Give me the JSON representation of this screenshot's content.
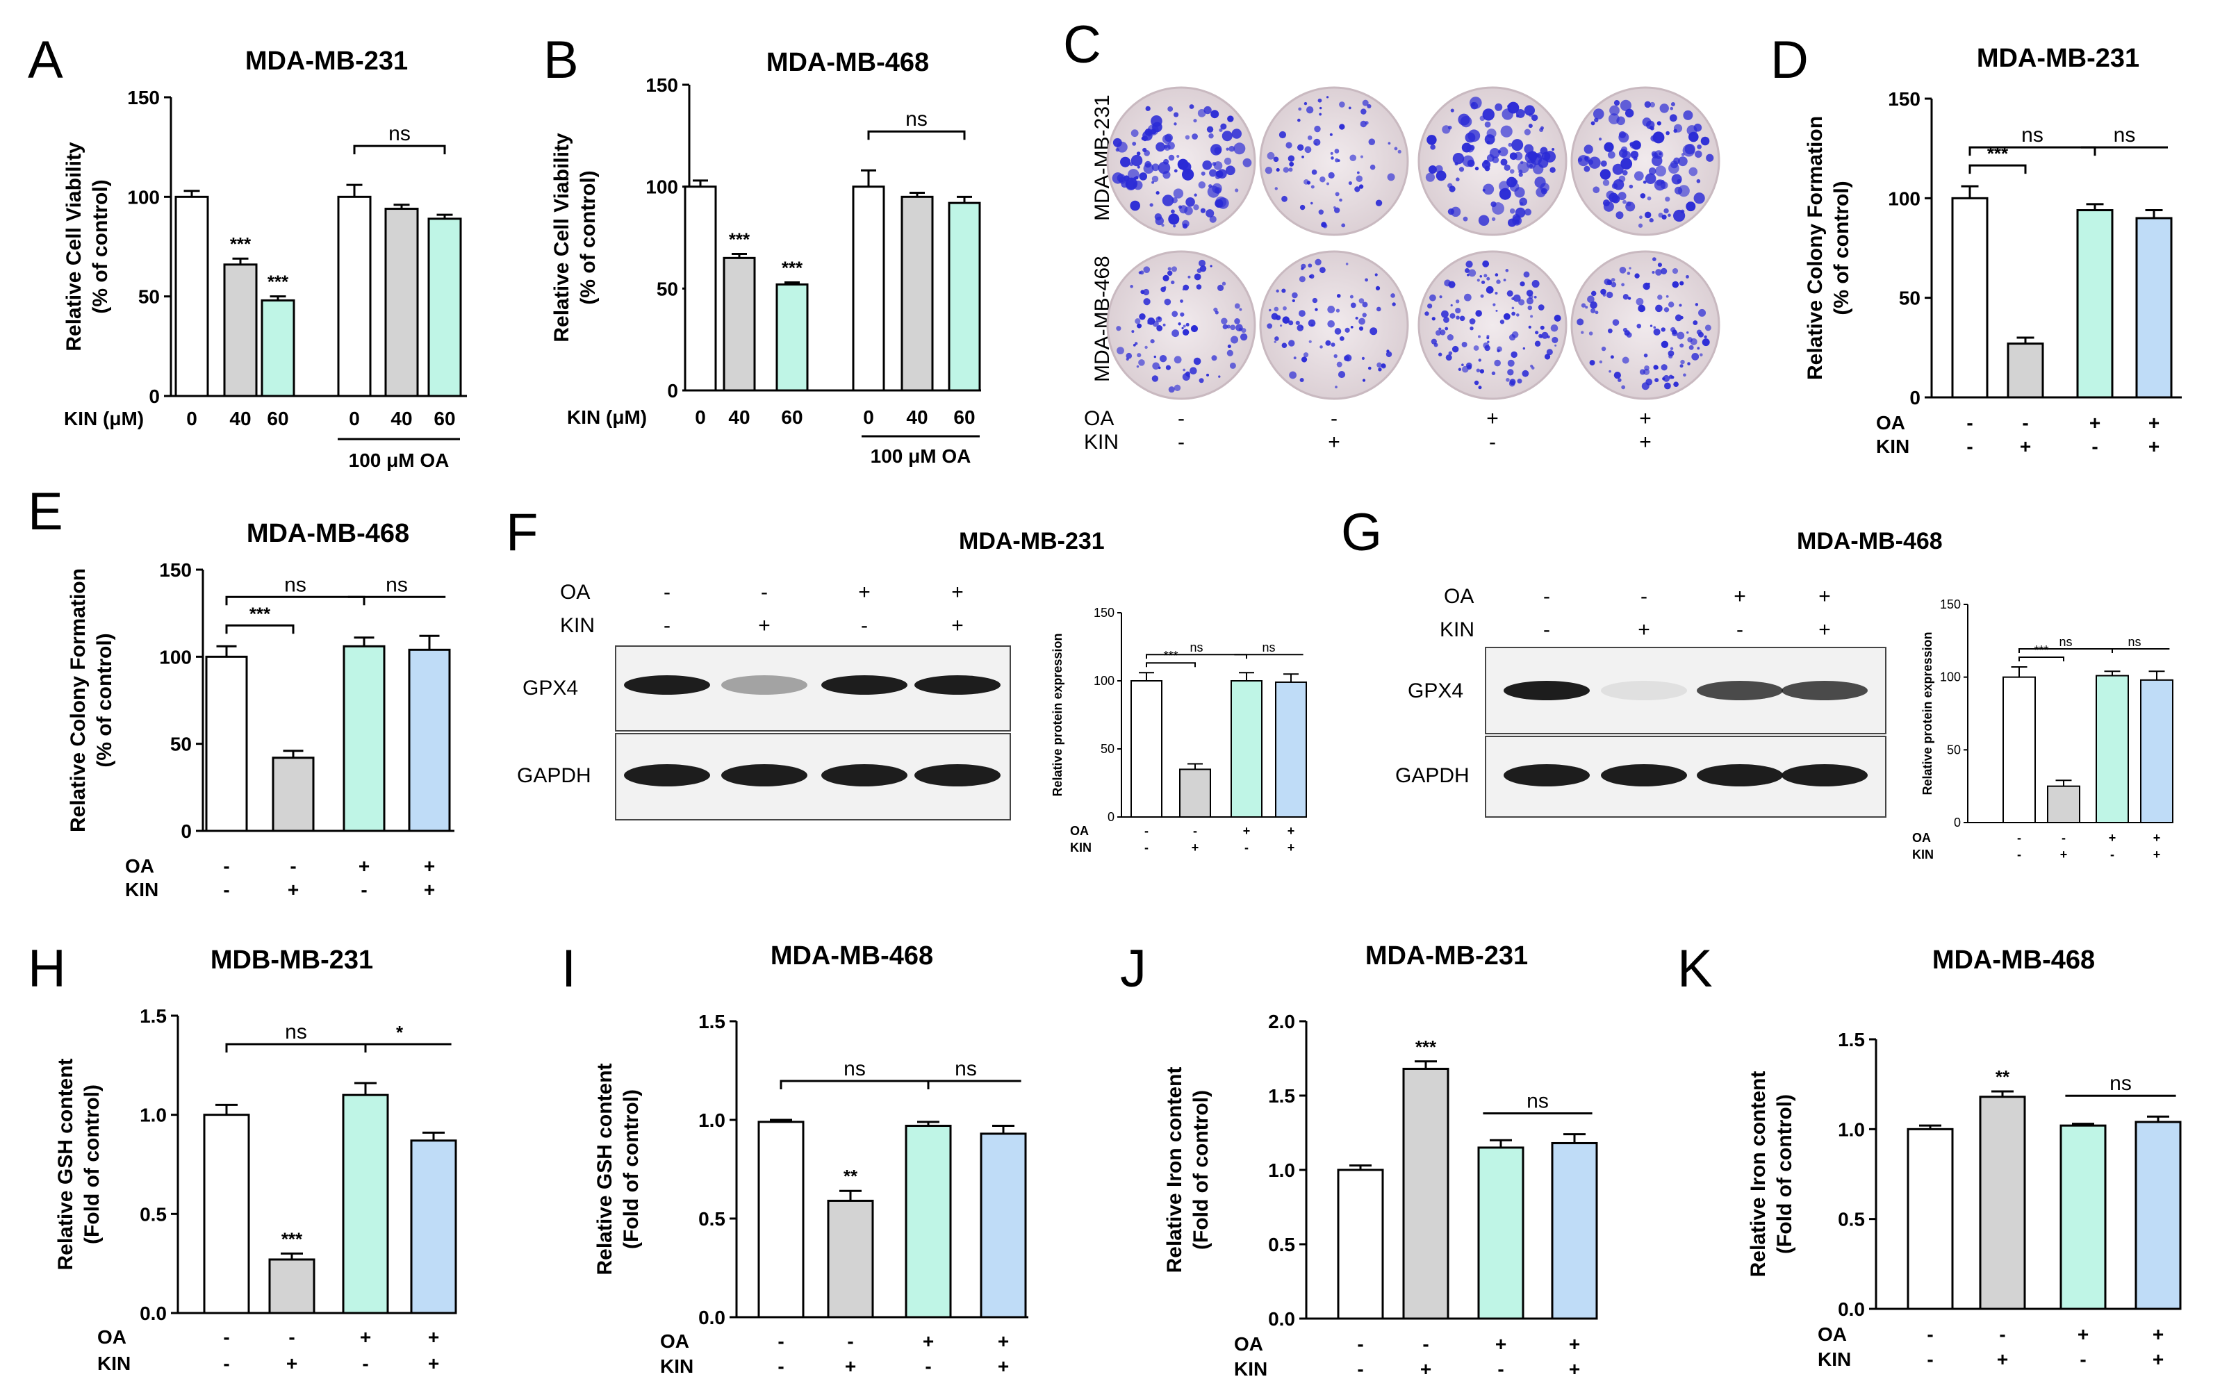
{
  "figure_letters": {
    "A": "A",
    "B": "B",
    "C": "C",
    "D": "D",
    "E": "E",
    "F": "F",
    "G": "G",
    "H": "H",
    "I": "I",
    "J": "J",
    "K": "K"
  },
  "colors": {
    "white": "#ffffff",
    "gray": "#d3d3d3",
    "cyan": "#bff5e6",
    "blue": "#bfdcf7",
    "crystal_violet": "#2b2bd6",
    "plate": "#e9dfe3"
  },
  "cond_labels": {
    "OA": "OA",
    "KIN": "KIN",
    "plus": "+",
    "minus": "-"
  },
  "panel_C": {
    "row_labels": [
      "MDA-MB-231",
      "MDA-MB-468"
    ],
    "OA": [
      "-",
      "-",
      "+",
      "+"
    ],
    "KIN": [
      "-",
      "+",
      "-",
      "+"
    ]
  },
  "panel_F": {
    "title": "MDA-MB-231",
    "OA": [
      "-",
      "-",
      "+",
      "+"
    ],
    "KIN": [
      "-",
      "+",
      "-",
      "+"
    ],
    "bands": [
      "GPX4",
      "GAPDH"
    ]
  },
  "panel_G": {
    "title": "MDA-MB-468",
    "OA": [
      "-",
      "-",
      "+",
      "+"
    ],
    "KIN": [
      "-",
      "+",
      "-",
      "+"
    ],
    "bands": [
      "GPX4",
      "GAPDH"
    ]
  },
  "chart_data": [
    {
      "id": "A",
      "type": "bar",
      "title": "MDA-MB-231",
      "ylabel": [
        "Relative Cell Viability",
        "(% of control)"
      ],
      "ylim": [
        0,
        150
      ],
      "yticks": [
        0,
        50,
        100,
        150
      ],
      "values": [
        100,
        66,
        48,
        100,
        94,
        89
      ],
      "errors": [
        3,
        3,
        2,
        6,
        2,
        2
      ],
      "fills": [
        "white",
        "gray",
        "cyan",
        "white",
        "gray",
        "cyan"
      ],
      "sig": [
        "",
        "***",
        "***",
        "",
        "",
        ""
      ],
      "x_name": "KIN (μM)",
      "x_ticks": [
        "0",
        "40",
        "60",
        "0",
        "40",
        "60"
      ],
      "group_label": "100 μM OA",
      "brackets": [
        {
          "from": 3,
          "to": 5,
          "label": "ns"
        }
      ]
    },
    {
      "id": "B",
      "type": "bar",
      "title": "MDA-MB-468",
      "ylabel": [
        "Relative Cell Viability",
        "(% of control)"
      ],
      "ylim": [
        0,
        150
      ],
      "yticks": [
        0,
        50,
        100,
        150
      ],
      "values": [
        100,
        65,
        52,
        100,
        95,
        92
      ],
      "errors": [
        3,
        2,
        1,
        8,
        2,
        3
      ],
      "fills": [
        "white",
        "gray",
        "cyan",
        "white",
        "gray",
        "cyan"
      ],
      "sig": [
        "",
        "***",
        "***",
        "",
        "",
        ""
      ],
      "x_name": "KIN (μM)",
      "x_ticks": [
        "0",
        "40",
        "60",
        "0",
        "40",
        "60"
      ],
      "group_label": "100 μM OA",
      "brackets": [
        {
          "from": 3,
          "to": 5,
          "label": "ns"
        }
      ]
    },
    {
      "id": "D",
      "type": "bar",
      "title": "MDA-MB-231",
      "ylabel": [
        "Relative Colony Formation",
        "(% of control)"
      ],
      "ylim": [
        0,
        150
      ],
      "yticks": [
        0,
        50,
        100,
        150
      ],
      "values": [
        100,
        27,
        94,
        90
      ],
      "errors": [
        6,
        3,
        3,
        4
      ],
      "fills": [
        "white",
        "gray",
        "cyan",
        "blue"
      ],
      "sig": [
        "",
        "",
        "",
        ""
      ],
      "OA": [
        "-",
        "-",
        "+",
        "+"
      ],
      "KIN": [
        "-",
        "+",
        "-",
        "+"
      ],
      "brackets": [
        {
          "from": 0,
          "to": 1,
          "label": "***"
        },
        {
          "from": 0,
          "to": 2,
          "label": "ns"
        },
        {
          "from": 2,
          "to": 3,
          "label": "ns"
        }
      ]
    },
    {
      "id": "E",
      "type": "bar",
      "title": "MDA-MB-468",
      "ylabel": [
        "Relative Colony Formation",
        "(% of control)"
      ],
      "ylim": [
        0,
        150
      ],
      "yticks": [
        0,
        50,
        100,
        150
      ],
      "values": [
        100,
        42,
        106,
        104
      ],
      "errors": [
        6,
        4,
        5,
        8
      ],
      "fills": [
        "white",
        "gray",
        "cyan",
        "blue"
      ],
      "sig": [
        "",
        "",
        "",
        ""
      ],
      "OA": [
        "-",
        "-",
        "+",
        "+"
      ],
      "KIN": [
        "-",
        "+",
        "-",
        "+"
      ],
      "brackets": [
        {
          "from": 0,
          "to": 1,
          "label": "***"
        },
        {
          "from": 0,
          "to": 2,
          "label": "ns"
        },
        {
          "from": 2,
          "to": 3,
          "label": "ns"
        }
      ]
    },
    {
      "id": "F",
      "type": "bar",
      "title": "",
      "ylabel": [
        "Relative protein expression"
      ],
      "ylim": [
        0,
        150
      ],
      "yticks": [
        0,
        50,
        100,
        150
      ],
      "values": [
        100,
        35,
        100,
        99
      ],
      "errors": [
        6,
        4,
        6,
        6
      ],
      "fills": [
        "white",
        "gray",
        "cyan",
        "blue"
      ],
      "sig": [
        "",
        "",
        "",
        ""
      ],
      "OA": [
        "-",
        "-",
        "+",
        "+"
      ],
      "KIN": [
        "-",
        "+",
        "-",
        "+"
      ],
      "brackets": [
        {
          "from": 0,
          "to": 1,
          "label": "***"
        },
        {
          "from": 0,
          "to": 2,
          "label": "ns"
        },
        {
          "from": 2,
          "to": 3,
          "label": "ns"
        }
      ]
    },
    {
      "id": "G",
      "type": "bar",
      "title": "",
      "ylabel": [
        "Relative protein expression"
      ],
      "ylim": [
        0,
        150
      ],
      "yticks": [
        0,
        50,
        100,
        150
      ],
      "values": [
        100,
        25,
        101,
        98
      ],
      "errors": [
        7,
        4,
        3,
        6
      ],
      "fills": [
        "white",
        "gray",
        "cyan",
        "blue"
      ],
      "sig": [
        "",
        "",
        "",
        ""
      ],
      "OA": [
        "-",
        "-",
        "+",
        "+"
      ],
      "KIN": [
        "-",
        "+",
        "-",
        "+"
      ],
      "brackets": [
        {
          "from": 0,
          "to": 1,
          "label": "***"
        },
        {
          "from": 0,
          "to": 2,
          "label": "ns"
        },
        {
          "from": 2,
          "to": 3,
          "label": "ns"
        }
      ]
    },
    {
      "id": "H",
      "type": "bar",
      "title": "MDB-MB-231",
      "ylabel": [
        "Relative GSH content",
        "(Fold of control)"
      ],
      "ylim": [
        0,
        1.5
      ],
      "yticks": [
        "0.0",
        "0.5",
        "1.0",
        "1.5"
      ],
      "values": [
        1.0,
        0.27,
        1.1,
        0.87
      ],
      "errors": [
        0.05,
        0.03,
        0.06,
        0.04
      ],
      "fills": [
        "white",
        "gray",
        "cyan",
        "blue"
      ],
      "sig": [
        "",
        "***",
        "",
        ""
      ],
      "OA": [
        "-",
        "-",
        "+",
        "+"
      ],
      "KIN": [
        "-",
        "+",
        "-",
        "+"
      ],
      "brackets": [
        {
          "from": 0,
          "to": 2,
          "label": "ns"
        },
        {
          "from": 2,
          "to": 3,
          "label": "*"
        }
      ]
    },
    {
      "id": "I",
      "type": "bar",
      "title": "MDA-MB-468",
      "ylabel": [
        "Relative GSH content",
        "(Fold of control)"
      ],
      "ylim": [
        0,
        1.5
      ],
      "yticks": [
        "0.0",
        "0.5",
        "1.0",
        "1.5"
      ],
      "values": [
        0.99,
        0.59,
        0.97,
        0.93
      ],
      "errors": [
        0.01,
        0.05,
        0.02,
        0.04
      ],
      "fills": [
        "white",
        "gray",
        "cyan",
        "blue"
      ],
      "sig": [
        "",
        "**",
        "",
        ""
      ],
      "OA": [
        "-",
        "-",
        "+",
        "+"
      ],
      "KIN": [
        "-",
        "+",
        "-",
        "+"
      ],
      "brackets": [
        {
          "from": 0,
          "to": 2,
          "label": "ns"
        },
        {
          "from": 2,
          "to": 3,
          "label": "ns"
        }
      ]
    },
    {
      "id": "J",
      "type": "bar",
      "title": "MDA-MB-231",
      "ylabel": [
        "Relative Iron content",
        "(Fold of control)"
      ],
      "ylim": [
        0,
        2.0
      ],
      "yticks": [
        "0.0",
        "0.5",
        "1.0",
        "1.5",
        "2.0"
      ],
      "values": [
        1.0,
        1.68,
        1.15,
        1.18
      ],
      "errors": [
        0.03,
        0.05,
        0.05,
        0.06
      ],
      "fills": [
        "white",
        "gray",
        "cyan",
        "blue"
      ],
      "sig": [
        "",
        "***",
        "",
        ""
      ],
      "OA": [
        "-",
        "-",
        "+",
        "+"
      ],
      "KIN": [
        "-",
        "+",
        "-",
        "+"
      ],
      "brackets": [
        {
          "from": 2,
          "to": 3,
          "label": "ns"
        }
      ]
    },
    {
      "id": "K",
      "type": "bar",
      "title": "MDA-MB-468",
      "ylabel": [
        "Relative Iron content",
        "(Fold of control)"
      ],
      "ylim": [
        0,
        1.5
      ],
      "yticks": [
        "0.0",
        "0.5",
        "1.0",
        "1.5"
      ],
      "values": [
        1.0,
        1.18,
        1.02,
        1.04
      ],
      "errors": [
        0.02,
        0.03,
        0.01,
        0.03
      ],
      "fills": [
        "white",
        "gray",
        "cyan",
        "blue"
      ],
      "sig": [
        "",
        "**",
        "",
        ""
      ],
      "OA": [
        "-",
        "-",
        "+",
        "+"
      ],
      "KIN": [
        "-",
        "+",
        "-",
        "+"
      ],
      "brackets": [
        {
          "from": 2,
          "to": 3,
          "label": "ns"
        }
      ]
    }
  ]
}
